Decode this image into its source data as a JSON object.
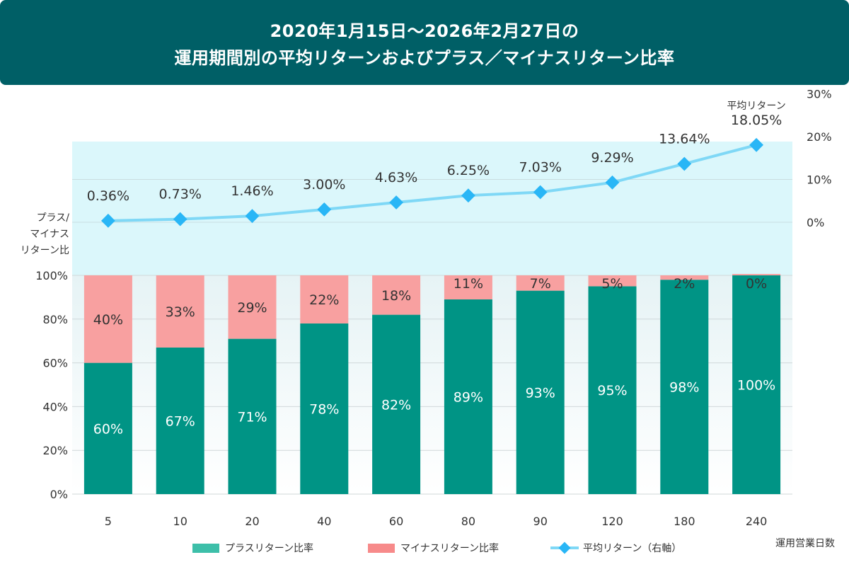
{
  "title": {
    "line1": "2020年1月15日～2026年2月27日の",
    "line2": "運用期間別の平均リターンおよびプラス／マイナスリターン比率"
  },
  "colors": {
    "banner": "#005f66",
    "positive": "#009485",
    "negative": "#f8a0a0",
    "line": "#7fd8f6",
    "marker": "#29b6f6",
    "upper_bg": "#dbf7fb"
  },
  "chart_data": {
    "type": "bar+line",
    "categories": [
      "5",
      "10",
      "20",
      "40",
      "60",
      "80",
      "90",
      "120",
      "180",
      "240"
    ],
    "series": [
      {
        "name": "プラスリターン比率",
        "type": "stacked-bar",
        "values": [
          60,
          67,
          71,
          78,
          82,
          89,
          93,
          95,
          98,
          100
        ],
        "labels": [
          "60%",
          "67%",
          "71%",
          "78%",
          "82%",
          "89%",
          "93%",
          "95%",
          "98%",
          "100%"
        ]
      },
      {
        "name": "マイナスリターン比率",
        "type": "stacked-bar",
        "values": [
          40,
          33,
          29,
          22,
          18,
          11,
          7,
          5,
          2,
          0
        ],
        "labels": [
          "40%",
          "33%",
          "29%",
          "22%",
          "18%",
          "11%",
          "7%",
          "5%",
          "2%",
          "0%"
        ]
      },
      {
        "name": "平均リターン（右軸）",
        "type": "line",
        "values": [
          0.36,
          0.73,
          1.46,
          3.0,
          4.63,
          6.25,
          7.03,
          9.29,
          13.64,
          18.05
        ],
        "labels": [
          "0.36%",
          "0.73%",
          "1.46%",
          "3.00%",
          "4.63%",
          "6.25%",
          "7.03%",
          "9.29%",
          "13.64%",
          "18.05%"
        ]
      }
    ],
    "left_axis": {
      "label_lines": [
        "プラス/",
        "マイナス",
        "リターン比"
      ],
      "ticks": [
        "0%",
        "20%",
        "40%",
        "60%",
        "80%",
        "100%"
      ],
      "range": [
        0,
        100
      ]
    },
    "right_axis": {
      "ticks": [
        "0%",
        "10%",
        "20%",
        "30%"
      ],
      "values": [
        0,
        10,
        20,
        30
      ]
    },
    "avg_return_header": "平均リターン",
    "xlabel": "運用営業日数",
    "legend": [
      {
        "label": "プラスリターン比率",
        "kind": "bar-positive"
      },
      {
        "label": "マイナスリターン比率",
        "kind": "bar-negative"
      },
      {
        "label": "平均リターン（右軸）",
        "kind": "line"
      }
    ]
  }
}
